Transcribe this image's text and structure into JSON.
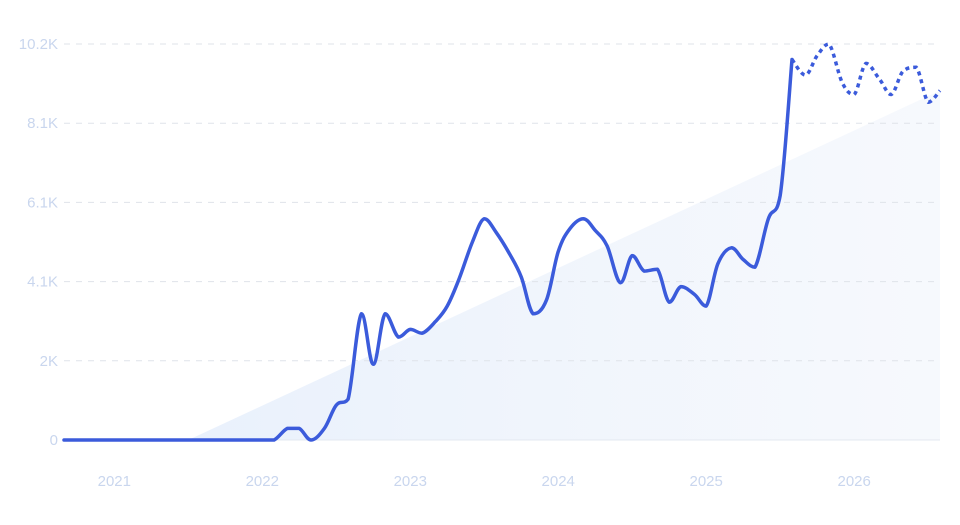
{
  "chart_data": {
    "type": "line",
    "title": "",
    "xlabel": "",
    "ylabel": "",
    "ylim": [
      0,
      10200
    ],
    "xlim": [
      2020.66,
      2026.58
    ],
    "y_ticks": [
      {
        "value": 0,
        "label": "0"
      },
      {
        "value": 2040,
        "label": "2K"
      },
      {
        "value": 4080,
        "label": "4.1K"
      },
      {
        "value": 6120,
        "label": "6.1K"
      },
      {
        "value": 8160,
        "label": "8.1K"
      },
      {
        "value": 10200,
        "label": "10.2K"
      }
    ],
    "x_ticks": [
      {
        "value": 2021.0,
        "label": "2021"
      },
      {
        "value": 2022.0,
        "label": "2022"
      },
      {
        "value": 2023.0,
        "label": "2023"
      },
      {
        "value": 2024.0,
        "label": "2024"
      },
      {
        "value": 2025.0,
        "label": "2025"
      },
      {
        "value": 2026.0,
        "label": "2026"
      }
    ],
    "grid": true,
    "colors": {
      "line": "#3b5bdb",
      "trend_fill": "#e8f0fc",
      "grid": "#dfe3ea",
      "tick_text": "#c9d6ee"
    },
    "series": [
      {
        "style": "solid",
        "x": [
          2020.66,
          2020.75,
          2020.83,
          2020.92,
          2021.0,
          2021.08,
          2021.17,
          2021.25,
          2021.33,
          2021.42,
          2021.5,
          2021.58,
          2021.67,
          2021.75,
          2021.83,
          2021.92,
          2022.0,
          2022.08,
          2022.17,
          2022.25,
          2022.33,
          2022.42,
          2022.5,
          2022.58,
          2022.67,
          2022.75,
          2022.83,
          2022.92,
          2023.0,
          2023.08,
          2023.17,
          2023.25,
          2023.33,
          2023.42,
          2023.5,
          2023.58,
          2023.67,
          2023.75,
          2023.83,
          2023.92,
          2024.0,
          2024.08,
          2024.17,
          2024.25,
          2024.33,
          2024.42,
          2024.5,
          2024.58,
          2024.67,
          2024.75,
          2024.83,
          2024.92,
          2025.0,
          2025.08,
          2025.17,
          2025.25,
          2025.33,
          2025.42,
          2025.5,
          2025.58
        ],
        "y": [
          0,
          0,
          0,
          0,
          0,
          0,
          0,
          0,
          0,
          0,
          0,
          0,
          0,
          0,
          0,
          0,
          0,
          0,
          300,
          300,
          0,
          300,
          900,
          1050,
          3250,
          1950,
          3250,
          2650,
          2850,
          2750,
          3050,
          3450,
          4150,
          5100,
          5700,
          5350,
          4800,
          4200,
          3250,
          3600,
          4850,
          5450,
          5700,
          5400,
          5000,
          4050,
          4750,
          4350,
          4400,
          3550,
          3950,
          3750,
          3450,
          4550,
          4950,
          4650,
          4450,
          5700,
          6300,
          9800
        ]
      },
      {
        "style": "dotted",
        "x": [
          2025.58,
          2025.67,
          2025.75,
          2025.83,
          2025.92,
          2026.0,
          2026.08,
          2026.17,
          2026.25,
          2026.33,
          2026.42,
          2026.5,
          2026.58
        ],
        "y": [
          9800,
          9400,
          9900,
          10200,
          9200,
          8900,
          9700,
          9300,
          8900,
          9500,
          9600,
          8700,
          9000
        ]
      }
    ],
    "trend_area": {
      "x": [
        2021.5,
        2026.58
      ],
      "y": [
        0,
        9000
      ]
    }
  }
}
